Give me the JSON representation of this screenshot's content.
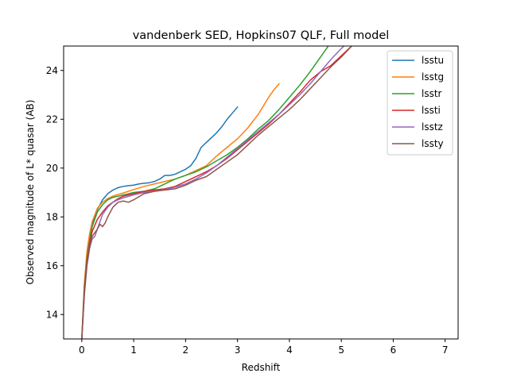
{
  "chart_data": {
    "type": "line",
    "title": "vandenberk SED, Hopkins07 QLF, Full model",
    "xlabel": "Redshift",
    "ylabel": "Observed magnitude of L* quasar (AB)",
    "xlim": [
      -0.35,
      7.25
    ],
    "ylim": [
      13.0,
      25.0
    ],
    "xticks": [
      0,
      1,
      2,
      3,
      4,
      5,
      6,
      7
    ],
    "yticks": [
      14,
      16,
      18,
      20,
      22,
      24
    ],
    "grid": false,
    "legend_position": "top-right",
    "series": [
      {
        "name": "lsstu",
        "color": "#1f77b4",
        "x": [
          0.0,
          0.05,
          0.1,
          0.15,
          0.2,
          0.3,
          0.4,
          0.5,
          0.6,
          0.7,
          0.8,
          0.9,
          1.0,
          1.1,
          1.2,
          1.3,
          1.4,
          1.5,
          1.6,
          1.7,
          1.8,
          1.9,
          2.0,
          2.1,
          2.2,
          2.3,
          2.4,
          2.5,
          2.6,
          2.7,
          2.8,
          2.9,
          3.0
        ],
        "y": [
          13.0,
          15.2,
          16.5,
          17.2,
          17.7,
          18.3,
          18.7,
          18.95,
          19.1,
          19.2,
          19.25,
          19.28,
          19.3,
          19.35,
          19.38,
          19.4,
          19.45,
          19.55,
          19.7,
          19.7,
          19.75,
          19.85,
          19.95,
          20.1,
          20.4,
          20.85,
          21.05,
          21.25,
          21.45,
          21.7,
          22.0,
          22.25,
          22.5
        ]
      },
      {
        "name": "lsstg",
        "color": "#ff7f0e",
        "x": [
          0.0,
          0.05,
          0.1,
          0.15,
          0.2,
          0.3,
          0.4,
          0.5,
          0.6,
          0.7,
          0.8,
          0.9,
          1.0,
          1.2,
          1.4,
          1.6,
          1.8,
          2.0,
          2.2,
          2.4,
          2.6,
          2.8,
          3.0,
          3.2,
          3.4,
          3.5,
          3.6,
          3.7,
          3.8
        ],
        "y": [
          13.0,
          15.3,
          16.6,
          17.3,
          17.8,
          18.35,
          18.6,
          18.75,
          18.85,
          18.92,
          18.98,
          19.05,
          19.12,
          19.25,
          19.35,
          19.45,
          19.55,
          19.7,
          19.9,
          20.1,
          20.5,
          20.85,
          21.2,
          21.65,
          22.2,
          22.55,
          22.9,
          23.2,
          23.45
        ]
      },
      {
        "name": "lsstr",
        "color": "#2ca02c",
        "x": [
          0.0,
          0.05,
          0.1,
          0.15,
          0.2,
          0.3,
          0.4,
          0.5,
          0.6,
          0.7,
          0.8,
          1.0,
          1.2,
          1.4,
          1.6,
          1.8,
          2.0,
          2.2,
          2.4,
          2.6,
          2.8,
          3.0,
          3.2,
          3.4,
          3.6,
          3.8,
          4.0,
          4.2,
          4.4,
          4.6,
          4.75
        ],
        "y": [
          13.0,
          15.1,
          16.3,
          17.0,
          17.6,
          18.2,
          18.5,
          18.7,
          18.8,
          18.85,
          18.9,
          19.0,
          19.05,
          19.15,
          19.35,
          19.55,
          19.7,
          19.85,
          20.05,
          20.3,
          20.55,
          20.85,
          21.2,
          21.6,
          21.95,
          22.4,
          22.9,
          23.4,
          23.95,
          24.55,
          25.0
        ]
      },
      {
        "name": "lssti",
        "color": "#d62728",
        "x": [
          0.0,
          0.05,
          0.1,
          0.15,
          0.2,
          0.3,
          0.4,
          0.5,
          0.6,
          0.7,
          0.8,
          1.0,
          1.2,
          1.4,
          1.6,
          1.8,
          2.0,
          2.2,
          2.4,
          2.6,
          2.8,
          3.0,
          3.2,
          3.4,
          3.6,
          3.8,
          4.0,
          4.2,
          4.4,
          4.6,
          4.8,
          5.0,
          5.2,
          5.4
        ],
        "y": [
          13.0,
          15.0,
          16.2,
          16.9,
          17.4,
          17.9,
          18.2,
          18.45,
          18.6,
          18.75,
          18.85,
          18.95,
          19.05,
          19.1,
          19.15,
          19.25,
          19.45,
          19.65,
          19.85,
          20.1,
          20.4,
          20.75,
          21.1,
          21.45,
          21.8,
          22.2,
          22.65,
          23.1,
          23.6,
          23.95,
          24.2,
          24.6,
          25.0,
          25.3
        ]
      },
      {
        "name": "lsstz",
        "color": "#9467bd",
        "x": [
          0.0,
          0.05,
          0.1,
          0.15,
          0.2,
          0.25,
          0.3,
          0.35,
          0.4,
          0.5,
          0.6,
          0.7,
          0.8,
          1.0,
          1.2,
          1.4,
          1.6,
          1.8,
          2.0,
          2.2,
          2.4,
          2.6,
          2.8,
          3.0,
          3.2,
          3.4,
          3.6,
          3.8,
          4.0,
          4.2,
          4.4,
          4.6,
          4.8,
          5.0,
          5.2
        ],
        "y": [
          13.0,
          14.8,
          16.0,
          16.7,
          17.1,
          17.2,
          17.5,
          17.8,
          18.1,
          18.4,
          18.6,
          18.7,
          18.78,
          18.9,
          19.0,
          19.05,
          19.12,
          19.22,
          19.35,
          19.55,
          19.8,
          20.1,
          20.45,
          20.8,
          21.15,
          21.5,
          21.85,
          22.2,
          22.6,
          23.0,
          23.45,
          23.95,
          24.45,
          24.9,
          25.3
        ]
      },
      {
        "name": "lssty",
        "color": "#8c564b",
        "x": [
          0.0,
          0.05,
          0.1,
          0.15,
          0.2,
          0.3,
          0.35,
          0.4,
          0.45,
          0.5,
          0.6,
          0.7,
          0.8,
          0.9,
          1.0,
          1.2,
          1.4,
          1.6,
          1.8,
          2.0,
          2.2,
          2.4,
          2.6,
          2.8,
          3.0,
          3.2,
          3.4,
          3.6,
          3.8,
          4.0,
          4.2,
          4.4,
          4.6,
          4.8,
          5.0,
          5.2,
          5.4
        ],
        "y": [
          13.0,
          14.9,
          16.1,
          16.8,
          17.2,
          17.5,
          17.7,
          17.6,
          17.75,
          18.0,
          18.4,
          18.6,
          18.65,
          18.6,
          18.7,
          18.95,
          19.05,
          19.1,
          19.15,
          19.3,
          19.5,
          19.65,
          19.95,
          20.25,
          20.55,
          20.95,
          21.35,
          21.7,
          22.05,
          22.4,
          22.8,
          23.25,
          23.7,
          24.15,
          24.55,
          25.0,
          25.3
        ]
      }
    ]
  }
}
